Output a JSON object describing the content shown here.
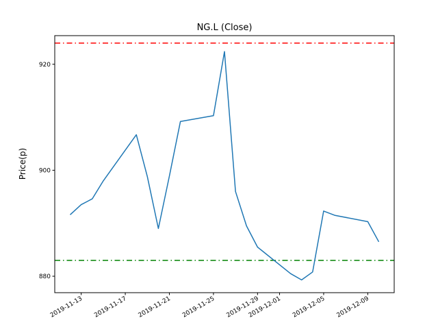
{
  "figure": {
    "title": "NG.L (Close)",
    "ylabel": "Price(p)"
  },
  "chart_data": {
    "type": "line",
    "title": "NG.L (Close)",
    "xlabel": "",
    "ylabel": "Price(p)",
    "grid": false,
    "legend": null,
    "line_color": "#1f77b4",
    "x": [
      "2019-11-12",
      "2019-11-13",
      "2019-11-14",
      "2019-11-15",
      "2019-11-18",
      "2019-11-19",
      "2019-11-20",
      "2019-11-21",
      "2019-11-22",
      "2019-11-25",
      "2019-11-26",
      "2019-11-27",
      "2019-11-28",
      "2019-11-29",
      "2019-12-02",
      "2019-12-03",
      "2019-12-04",
      "2019-12-05",
      "2019-12-06",
      "2019-12-09",
      "2019-12-10"
    ],
    "values": [
      891.6,
      893.5,
      894.6,
      898.0,
      906.7,
      898.8,
      889.0,
      898.9,
      909.2,
      910.3,
      922.4,
      896.0,
      889.5,
      885.5,
      880.5,
      879.3,
      880.8,
      892.3,
      891.5,
      890.3,
      886.5
    ],
    "x_ticks": [
      "2019-11-13",
      "2019-11-17",
      "2019-11-21",
      "2019-11-25",
      "2019-11-29",
      "2019-12-01",
      "2019-12-05",
      "2019-12-09"
    ],
    "y_ticks": [
      880,
      900,
      920
    ],
    "ylim": [
      876.9,
      925.4
    ],
    "xlim_days": [
      -1.4,
      29.4
    ],
    "x_origin_date": "2019-11-12",
    "hlines": [
      {
        "name": "upper-threshold",
        "value": 924.0,
        "color": "#ff0000",
        "style": "dashdot"
      },
      {
        "name": "lower-threshold",
        "value": 883.0,
        "color": "#008000",
        "style": "dashdot"
      }
    ]
  }
}
